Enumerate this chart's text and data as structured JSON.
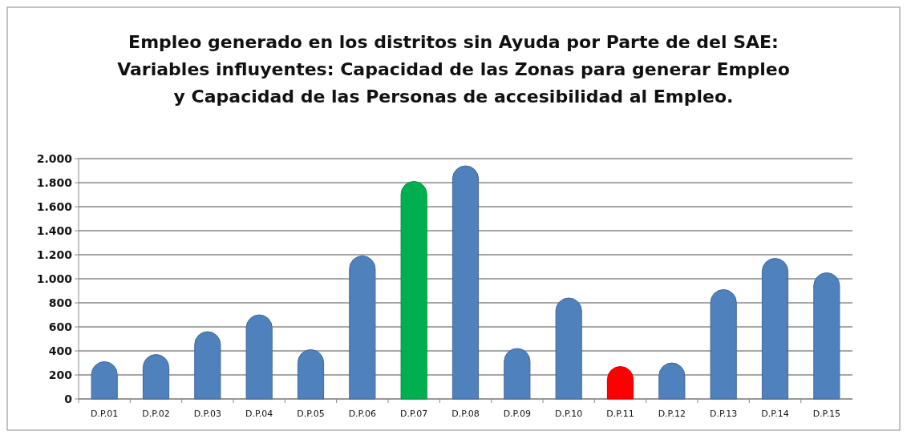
{
  "chart_data": {
    "type": "bar",
    "title": "Empleo generado en los distritos sin Ayuda por Parte de del SAE:\nVariables influyentes: Capacidad de las Zonas para generar Empleo\ny  Capacidad de las Personas de accesibilidad al Empleo.",
    "categories": [
      "D.P.01",
      "D.P.02",
      "D.P.03",
      "D.P.04",
      "D.P.05",
      "D.P.06",
      "D.P.07",
      "D.P.08",
      "D.P.09",
      "D.P.10",
      "D.P.11",
      "D.P.12",
      "D.P.13",
      "D.P.14",
      "D.P.15"
    ],
    "values": [
      310,
      370,
      560,
      700,
      410,
      1190,
      1810,
      1940,
      420,
      840,
      270,
      300,
      910,
      1170,
      1050
    ],
    "colors": [
      "#4f81bd",
      "#4f81bd",
      "#4f81bd",
      "#4f81bd",
      "#4f81bd",
      "#4f81bd",
      "#00b050",
      "#4f81bd",
      "#4f81bd",
      "#4f81bd",
      "#ff0000",
      "#4f81bd",
      "#4f81bd",
      "#4f81bd",
      "#4f81bd"
    ],
    "ylim": [
      0,
      2000
    ],
    "yticks": [
      0,
      200,
      400,
      600,
      800,
      {
        "value": 1000,
        "label": "1.000"
      },
      {
        "value": 1200,
        "label": "1.200"
      },
      {
        "value": 1400,
        "label": "1.400"
      },
      {
        "value": 1600,
        "label": "1.600"
      },
      {
        "value": 1800,
        "label": "1.800"
      },
      {
        "value": 2000,
        "label": "2.000"
      }
    ],
    "grid": true
  }
}
